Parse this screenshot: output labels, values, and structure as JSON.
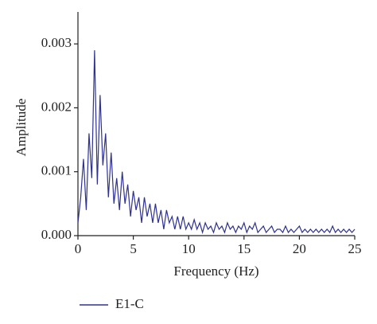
{
  "chart_data": {
    "type": "line",
    "x_label": "Frequency (Hz)",
    "y_label": "Amplitude",
    "x": [
      0,
      0.25,
      0.5,
      0.75,
      1,
      1.25,
      1.5,
      1.75,
      2,
      2.25,
      2.5,
      2.75,
      3,
      3.25,
      3.5,
      3.75,
      4,
      4.25,
      4.5,
      4.75,
      5,
      5.25,
      5.5,
      5.75,
      6,
      6.25,
      6.5,
      6.75,
      7,
      7.25,
      7.5,
      7.75,
      8,
      8.25,
      8.5,
      8.75,
      9,
      9.25,
      9.5,
      9.75,
      10,
      10.25,
      10.5,
      10.75,
      11,
      11.25,
      11.5,
      11.75,
      12,
      12.25,
      12.5,
      12.75,
      13,
      13.25,
      13.5,
      13.75,
      14,
      14.25,
      14.5,
      14.75,
      15,
      15.25,
      15.5,
      15.75,
      16,
      16.25,
      16.5,
      16.75,
      17,
      17.25,
      17.5,
      17.75,
      18,
      18.25,
      18.5,
      18.75,
      19,
      19.25,
      19.5,
      19.75,
      20,
      20.25,
      20.5,
      20.75,
      21,
      21.25,
      21.5,
      21.75,
      22,
      22.25,
      22.5,
      22.75,
      23,
      23.25,
      23.5,
      23.75,
      24,
      24.25,
      24.5,
      24.75,
      25
    ],
    "series": [
      {
        "name": "E1-C",
        "color": "#2e3192",
        "values": [
          0.0002,
          0.0006,
          0.0012,
          0.0004,
          0.0016,
          0.0009,
          0.0029,
          0.0008,
          0.0022,
          0.0011,
          0.0016,
          0.0006,
          0.0013,
          0.0005,
          0.0009,
          0.0004,
          0.001,
          0.0005,
          0.0008,
          0.0003,
          0.0007,
          0.0004,
          0.0006,
          0.0002,
          0.0006,
          0.0003,
          0.0005,
          0.0002,
          0.0005,
          0.0002,
          0.0004,
          0.0001,
          0.0004,
          0.0002,
          0.0003,
          0.0001,
          0.0003,
          0.0001,
          0.0003,
          0.0001,
          0.0002,
          0.0001,
          0.00025,
          0.0001,
          0.0002,
          5e-05,
          0.0002,
          0.0001,
          0.00015,
          5e-05,
          0.0002,
          0.0001,
          0.00015,
          5e-05,
          0.0002,
          0.0001,
          0.00015,
          5e-05,
          0.00015,
          0.0001,
          0.0002,
          5e-05,
          0.00015,
          0.0001,
          0.0002,
          5e-05,
          0.0001,
          0.00015,
          5e-05,
          0.0001,
          0.00015,
          5e-05,
          0.0001,
          0.0001,
          5e-05,
          0.00015,
          5e-05,
          0.0001,
          5e-05,
          0.0001,
          0.00015,
          5e-05,
          0.0001,
          5e-05,
          0.0001,
          5e-05,
          0.0001,
          5e-05,
          0.0001,
          5e-05,
          0.0001,
          5e-05,
          0.00015,
          5e-05,
          0.0001,
          5e-05,
          0.0001,
          5e-05,
          0.0001,
          5e-05,
          0.0001
        ]
      }
    ],
    "xlim": [
      0,
      25
    ],
    "xticks": [
      0,
      5,
      10,
      15,
      20,
      25
    ],
    "ylim": [
      0,
      0.0035
    ],
    "yticks": [
      {
        "value": 0,
        "label": "0.000"
      },
      {
        "value": 0.001,
        "label": "0.001"
      },
      {
        "value": 0.002,
        "label": "0.002"
      },
      {
        "value": 0.003,
        "label": "0.003"
      }
    ]
  }
}
